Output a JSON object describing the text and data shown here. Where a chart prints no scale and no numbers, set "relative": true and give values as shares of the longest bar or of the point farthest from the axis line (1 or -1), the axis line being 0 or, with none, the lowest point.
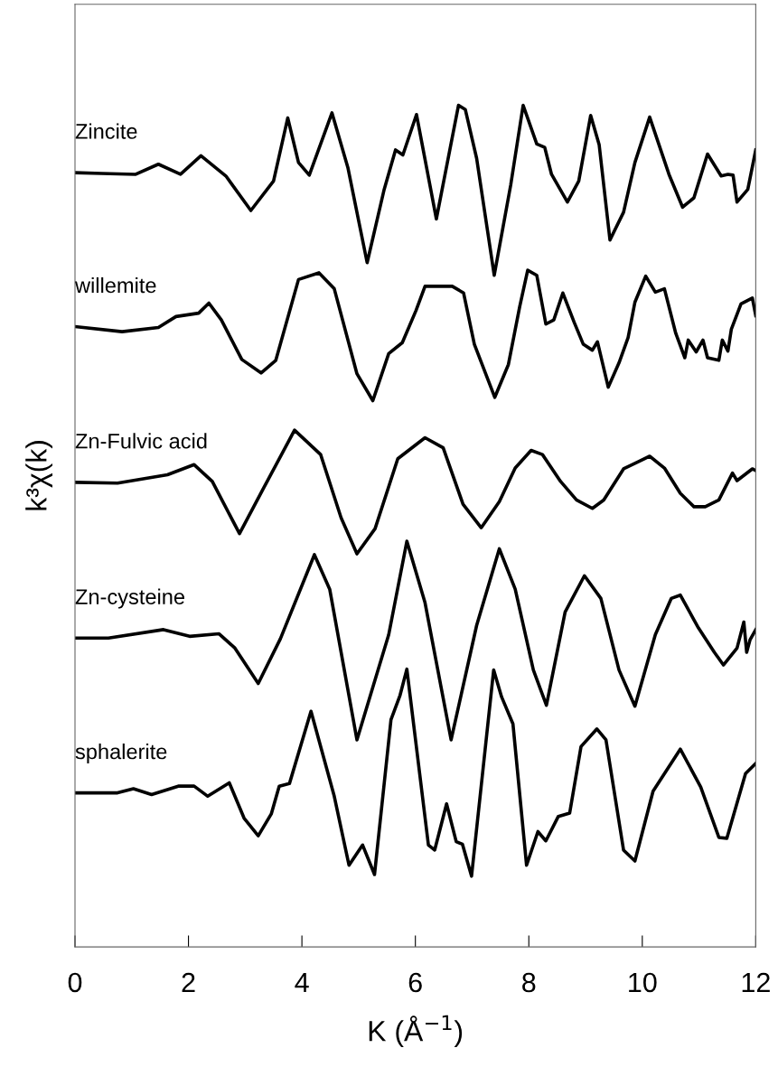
{
  "chart_data": {
    "type": "line",
    "relative": true,
    "xlabel": "K (Å$^{−1}$)",
    "ylabel": "k³χ(k)",
    "xlim": [
      0,
      12
    ],
    "xticks": [
      0,
      2,
      4,
      6,
      8,
      10,
      12
    ],
    "tick_labels": "x",
    "grid": false,
    "legend": false,
    "marker": "none",
    "line_style": "solid",
    "series": [
      {
        "name": "Zincite",
        "color": "#000000",
        "x": [
          0,
          0.47,
          1.07,
          1.47,
          1.86,
          2.22,
          2.66,
          3.1,
          3.5,
          3.75,
          3.94,
          4.13,
          4.53,
          4.81,
          5.15,
          5.45,
          5.65,
          5.78,
          6.02,
          6.37,
          6.76,
          6.88,
          7.08,
          7.39,
          7.68,
          7.9,
          8.14,
          8.28,
          8.4,
          8.68,
          8.88,
          9.09,
          9.24,
          9.43,
          9.67,
          9.87,
          10.13,
          10.47,
          10.71,
          10.91,
          11.15,
          11.39,
          11.51,
          11.6,
          11.67,
          11.86,
          12.0
        ],
        "values": [
          0.92,
          0.919,
          0.918,
          0.93,
          0.918,
          0.94,
          0.916,
          0.875,
          0.91,
          0.985,
          0.932,
          0.917,
          0.991,
          0.926,
          0.813,
          0.9,
          0.947,
          0.941,
          0.989,
          0.865,
          1.0,
          0.995,
          0.937,
          0.798,
          0.905,
          1.0,
          0.954,
          0.95,
          0.918,
          0.885,
          0.91,
          0.988,
          0.953,
          0.84,
          0.873,
          0.932,
          0.986,
          0.918,
          0.879,
          0.89,
          0.942,
          0.916,
          0.918,
          0.917,
          0.885,
          0.9,
          0.947
        ]
      },
      {
        "name": "willemite",
        "color": "#000000",
        "x": [
          0,
          0.83,
          1.47,
          1.78,
          2.18,
          2.36,
          2.58,
          2.94,
          3.28,
          3.54,
          3.94,
          4.3,
          4.57,
          4.97,
          5.25,
          5.53,
          5.77,
          6.01,
          6.17,
          6.65,
          6.85,
          7.04,
          7.4,
          7.64,
          7.84,
          7.98,
          8.14,
          8.3,
          8.44,
          8.6,
          8.8,
          8.96,
          9.12,
          9.21,
          9.4,
          9.59,
          9.75,
          9.87,
          10.06,
          10.23,
          10.39,
          10.59,
          10.75,
          10.81,
          10.95,
          11.07,
          11.15,
          11.35,
          11.41,
          11.51,
          11.57,
          11.74,
          11.94,
          12.0
        ],
        "values": [
          0.737,
          0.731,
          0.736,
          0.749,
          0.753,
          0.765,
          0.745,
          0.698,
          0.682,
          0.697,
          0.793,
          0.801,
          0.782,
          0.681,
          0.649,
          0.705,
          0.718,
          0.756,
          0.785,
          0.785,
          0.777,
          0.716,
          0.653,
          0.692,
          0.761,
          0.804,
          0.798,
          0.74,
          0.745,
          0.777,
          0.742,
          0.716,
          0.709,
          0.719,
          0.665,
          0.694,
          0.724,
          0.766,
          0.797,
          0.778,
          0.782,
          0.729,
          0.7,
          0.721,
          0.707,
          0.721,
          0.7,
          0.697,
          0.721,
          0.708,
          0.734,
          0.764,
          0.771,
          0.75
        ]
      },
      {
        "name": "Zn-Fulvic acid",
        "color": "#000000",
        "x": [
          0,
          0.75,
          1.63,
          2.1,
          2.42,
          2.9,
          3.3,
          3.87,
          4.33,
          4.69,
          4.97,
          5.29,
          5.69,
          6.17,
          6.49,
          6.84,
          7.16,
          7.48,
          7.76,
          8.04,
          8.24,
          8.56,
          8.84,
          9.12,
          9.32,
          9.67,
          10.13,
          10.39,
          10.67,
          10.91,
          11.11,
          11.35,
          11.59,
          11.67,
          11.94,
          12.0
        ],
        "values": [
          0.552,
          0.551,
          0.561,
          0.573,
          0.553,
          0.491,
          0.542,
          0.614,
          0.585,
          0.51,
          0.467,
          0.497,
          0.58,
          0.605,
          0.593,
          0.526,
          0.498,
          0.529,
          0.569,
          0.59,
          0.585,
          0.553,
          0.531,
          0.521,
          0.531,
          0.568,
          0.583,
          0.569,
          0.539,
          0.523,
          0.523,
          0.531,
          0.563,
          0.554,
          0.568,
          0.566
        ]
      },
      {
        "name": "Zn-cysteine",
        "color": "#000000",
        "x": [
          0,
          0.59,
          1.56,
          2.02,
          2.54,
          2.82,
          3.23,
          3.62,
          4.22,
          4.49,
          4.97,
          5.53,
          5.85,
          6.17,
          6.63,
          7.08,
          7.48,
          7.76,
          8.08,
          8.31,
          8.64,
          8.98,
          9.27,
          9.59,
          9.87,
          10.23,
          10.51,
          10.67,
          10.99,
          11.27,
          11.43,
          11.67,
          11.79,
          11.84,
          11.9,
          12.0
        ],
        "values": [
          0.367,
          0.367,
          0.377,
          0.369,
          0.372,
          0.355,
          0.313,
          0.366,
          0.466,
          0.425,
          0.246,
          0.371,
          0.482,
          0.409,
          0.246,
          0.382,
          0.473,
          0.425,
          0.329,
          0.287,
          0.398,
          0.441,
          0.414,
          0.329,
          0.286,
          0.371,
          0.414,
          0.418,
          0.379,
          0.35,
          0.335,
          0.355,
          0.386,
          0.35,
          0.365,
          0.377
        ]
      },
      {
        "name": "sphalerite",
        "color": "#000000",
        "x": [
          0,
          0.75,
          1.03,
          1.35,
          1.82,
          2.1,
          2.34,
          2.72,
          2.98,
          3.23,
          3.46,
          3.6,
          3.78,
          4.16,
          4.57,
          4.83,
          5.07,
          5.28,
          5.57,
          5.73,
          5.85,
          6.23,
          6.34,
          6.55,
          6.72,
          6.83,
          6.99,
          7.38,
          7.52,
          7.72,
          7.96,
          8.16,
          8.3,
          8.52,
          8.72,
          8.92,
          9.2,
          9.36,
          9.67,
          9.87,
          10.19,
          10.67,
          11.03,
          11.35,
          11.49,
          11.82,
          12.0
        ],
        "values": [
          0.183,
          0.183,
          0.188,
          0.181,
          0.191,
          0.191,
          0.179,
          0.195,
          0.153,
          0.132,
          0.158,
          0.191,
          0.194,
          0.28,
          0.179,
          0.097,
          0.121,
          0.086,
          0.27,
          0.299,
          0.33,
          0.121,
          0.115,
          0.17,
          0.125,
          0.122,
          0.084,
          0.329,
          0.297,
          0.265,
          0.097,
          0.137,
          0.126,
          0.155,
          0.159,
          0.238,
          0.259,
          0.246,
          0.115,
          0.102,
          0.185,
          0.235,
          0.19,
          0.13,
          0.129,
          0.206,
          0.218
        ]
      }
    ]
  }
}
